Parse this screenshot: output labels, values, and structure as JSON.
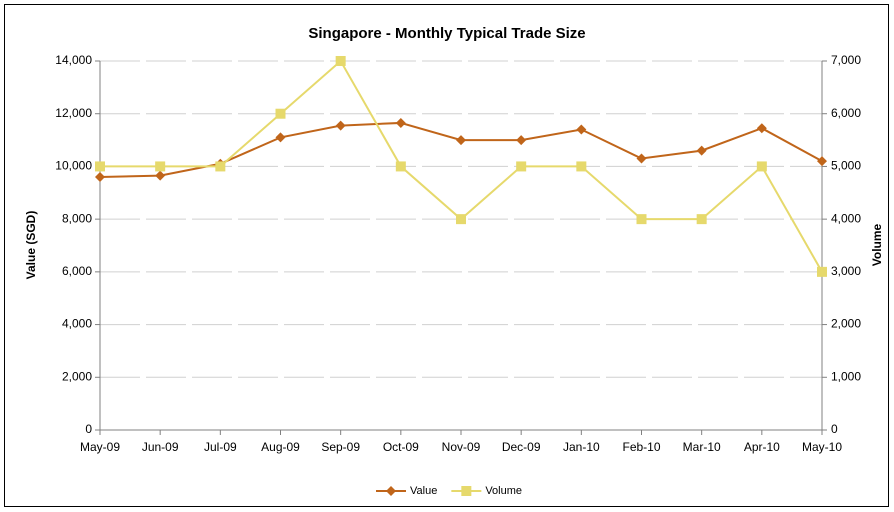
{
  "chart_data": {
    "type": "line",
    "title": "Singapore - Monthly Typical Trade Size",
    "y_label": "Value (SGD)",
    "y2_label": "Volume",
    "categories": [
      "May-09",
      "Jun-09",
      "Jul-09",
      "Aug-09",
      "Sep-09",
      "Oct-09",
      "Nov-09",
      "Dec-09",
      "Jan-10",
      "Feb-10",
      "Mar-10",
      "Apr-10",
      "May-10"
    ],
    "series": [
      {
        "name": "Value",
        "color": "#c0651a",
        "marker": "diamond",
        "values": [
          9600,
          9650,
          10100,
          11100,
          11550,
          11650,
          11000,
          11000,
          11400,
          10300,
          10600,
          11450,
          10200
        ]
      },
      {
        "name": "Volume",
        "color": "#e6d96c",
        "marker": "square",
        "axis": "y2",
        "values": [
          5000,
          5000,
          5000,
          6000,
          7000,
          5000,
          4000,
          5000,
          5000,
          4000,
          4000,
          5000,
          3000
        ]
      }
    ],
    "ylim": [
      0,
      14000
    ],
    "yticks": [
      0,
      {
        "value": 2000,
        "label": "2,000"
      },
      {
        "value": 4000,
        "label": "4,000"
      },
      {
        "value": 6000,
        "label": "6,000"
      },
      {
        "value": 8000,
        "label": "8,000"
      },
      {
        "value": 10000,
        "label": "10,000"
      },
      {
        "value": 12000,
        "label": "12,000"
      },
      {
        "value": 14000,
        "label": "14,000"
      }
    ],
    "y2lim": [
      0,
      7000
    ],
    "y2ticks": [
      0,
      {
        "value": 1000,
        "label": "1,000"
      },
      {
        "value": 2000,
        "label": "2,000"
      },
      {
        "value": 3000,
        "label": "3,000"
      },
      {
        "value": 4000,
        "label": "4,000"
      },
      {
        "value": 5000,
        "label": "5,000"
      },
      {
        "value": 6000,
        "label": "6,000"
      },
      {
        "value": 7000,
        "label": "7,000"
      }
    ],
    "grid": true,
    "legend": "bottom"
  }
}
